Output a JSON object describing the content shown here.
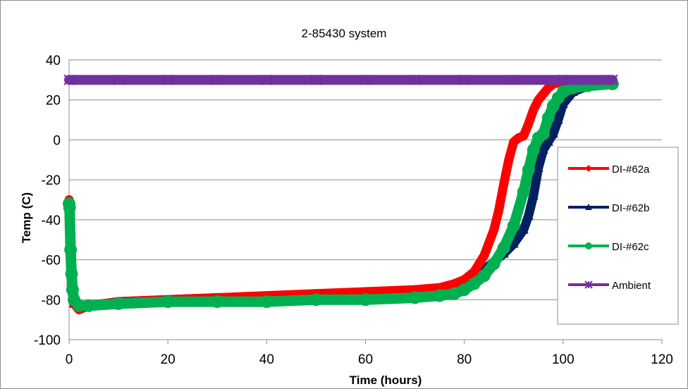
{
  "chart_data": {
    "type": "line",
    "title": "2-85430 system",
    "xlabel": "Time (hours)",
    "ylabel": "Temp (C)",
    "xlim": [
      0,
      120
    ],
    "ylim": [
      -100,
      40
    ],
    "xticks": [
      0,
      20,
      40,
      60,
      80,
      100,
      120
    ],
    "yticks": [
      -100,
      -80,
      -60,
      -40,
      -20,
      0,
      20,
      40
    ],
    "grid": "horizontal",
    "legend_position": "right",
    "series": [
      {
        "name": "DI-#62a",
        "color": "#ff0000",
        "marker": "diamond",
        "x": [
          0,
          0.1,
          0.3,
          0.5,
          1,
          2,
          4,
          10,
          20,
          30,
          40,
          50,
          60,
          70,
          75,
          78,
          80,
          82,
          84,
          86,
          87,
          88,
          89,
          90,
          91,
          92,
          93,
          94,
          95,
          96,
          97,
          98,
          100,
          105,
          110
        ],
        "y": [
          -30,
          -44,
          -62,
          -75,
          -82,
          -85,
          -83,
          -81,
          -80,
          -79,
          -78,
          -77,
          -76,
          -75,
          -74,
          -72,
          -70,
          -66,
          -58,
          -45,
          -35,
          -22,
          -10,
          -1,
          1,
          2,
          8,
          15,
          20,
          23,
          26,
          28,
          29,
          29,
          29
        ]
      },
      {
        "name": "DI-#62b",
        "color": "#002060",
        "marker": "triangle",
        "x": [
          0,
          0.1,
          0.3,
          0.5,
          1,
          2,
          4,
          10,
          20,
          30,
          40,
          50,
          60,
          70,
          75,
          78,
          80,
          82,
          84,
          86,
          88,
          90,
          92,
          93,
          94,
          95,
          96,
          97,
          98,
          99,
          100,
          102,
          105,
          110
        ],
        "y": [
          -33,
          -38,
          -50,
          -70,
          -82,
          -84,
          -83,
          -81,
          -80,
          -79,
          -79,
          -78,
          -77,
          -77,
          -76,
          -74,
          -72,
          -69,
          -65,
          -61,
          -57,
          -52,
          -45,
          -38,
          -28,
          -14,
          -5,
          -1,
          3,
          10,
          18,
          24,
          27,
          28
        ]
      },
      {
        "name": "DI-#62c",
        "color": "#00b050",
        "marker": "circle",
        "x": [
          0,
          0.1,
          0.3,
          0.5,
          0.7,
          1,
          2,
          4,
          10,
          20,
          30,
          40,
          50,
          60,
          70,
          75,
          78,
          80,
          82,
          84,
          86,
          88,
          90,
          92,
          93,
          94,
          95,
          96,
          97,
          98,
          99,
          100,
          102,
          105,
          110
        ],
        "y": [
          -32,
          -34,
          -55,
          -67,
          -75,
          -80,
          -83,
          -83,
          -82,
          -81,
          -81,
          -81,
          -80,
          -80,
          -79,
          -78,
          -77,
          -75,
          -72,
          -68,
          -62,
          -54,
          -43,
          -26,
          -15,
          -5,
          1,
          3,
          11,
          17,
          21,
          24,
          26,
          27,
          28
        ]
      },
      {
        "name": "Ambient",
        "color": "#7030a0",
        "marker": "x",
        "x": [
          0,
          10,
          20,
          30,
          40,
          50,
          60,
          70,
          80,
          90,
          100,
          110
        ],
        "y": [
          30,
          30,
          30,
          30,
          30,
          30,
          30,
          30,
          30,
          30,
          30,
          30
        ]
      }
    ]
  }
}
